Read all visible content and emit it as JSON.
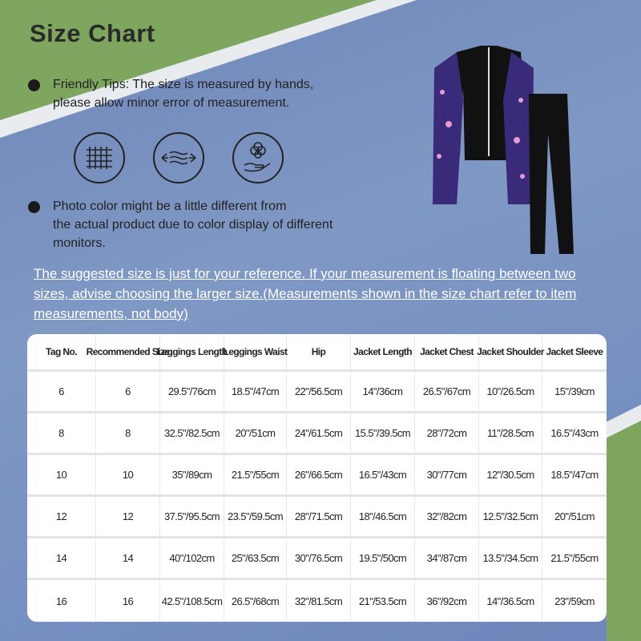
{
  "title": "Size Chart",
  "tips": [
    {
      "lines": [
        "Friendly Tips: The size is measured by hands,",
        "please allow minor error of measurement."
      ]
    },
    {
      "lines": [
        "Photo color might be a little different from",
        "the actual product due to color display of different",
        "monitors."
      ]
    }
  ],
  "icons": [
    "mesh-fabric-icon",
    "stretch-fabric-icon",
    "cotton-soft-icon"
  ],
  "note": "The suggested size is just for your reference. If your measurement is floating between two sizes, advise choosing the larger size.(Measurements shown in the size chart refer to item measurements, not body)",
  "table": {
    "headers": [
      "Tag No.",
      "Recommended Size",
      "Leggings Length",
      "Leggings Waist",
      "Hip",
      "Jacket Length",
      "Jacket Chest",
      "Jacket Shoulder",
      "Jacket Sleeve"
    ],
    "rows": [
      [
        "6",
        "6",
        "29.5\"/76cm",
        "18.5\"/47cm",
        "22\"/56.5cm",
        "14\"/36cm",
        "26.5\"/67cm",
        "10\"/26.5cm",
        "15\"/39cm"
      ],
      [
        "8",
        "8",
        "32.5\"/82.5cm",
        "20\"/51cm",
        "24\"/61.5cm",
        "15.5\"/39.5cm",
        "28\"/72cm",
        "11\"/28.5cm",
        "16.5\"/43cm"
      ],
      [
        "10",
        "10",
        "35\"/89cm",
        "21.5\"/55cm",
        "26\"/66.5cm",
        "16.5\"/43cm",
        "30\"/77cm",
        "12\"/30.5cm",
        "18.5\"/47cm"
      ],
      [
        "12",
        "12",
        "37.5\"/95.5cm",
        "23.5\"/59.5cm",
        "28\"/71.5cm",
        "18\"/46.5cm",
        "32\"/82cm",
        "12.5\"/32.5cm",
        "20\"/51cm"
      ],
      [
        "14",
        "14",
        "40\"/102cm",
        "25\"/63.5cm",
        "30\"/76.5cm",
        "19.5\"/50cm",
        "34\"/87cm",
        "13.5\"/34.5cm",
        "21.5\"/55cm"
      ],
      [
        "16",
        "16",
        "42.5\"/108.5cm",
        "26.5\"/68cm",
        "32\"/81.5cm",
        "21\"/53.5cm",
        "36\"/92cm",
        "14\"/36.5cm",
        "23\"/59cm"
      ]
    ]
  }
}
